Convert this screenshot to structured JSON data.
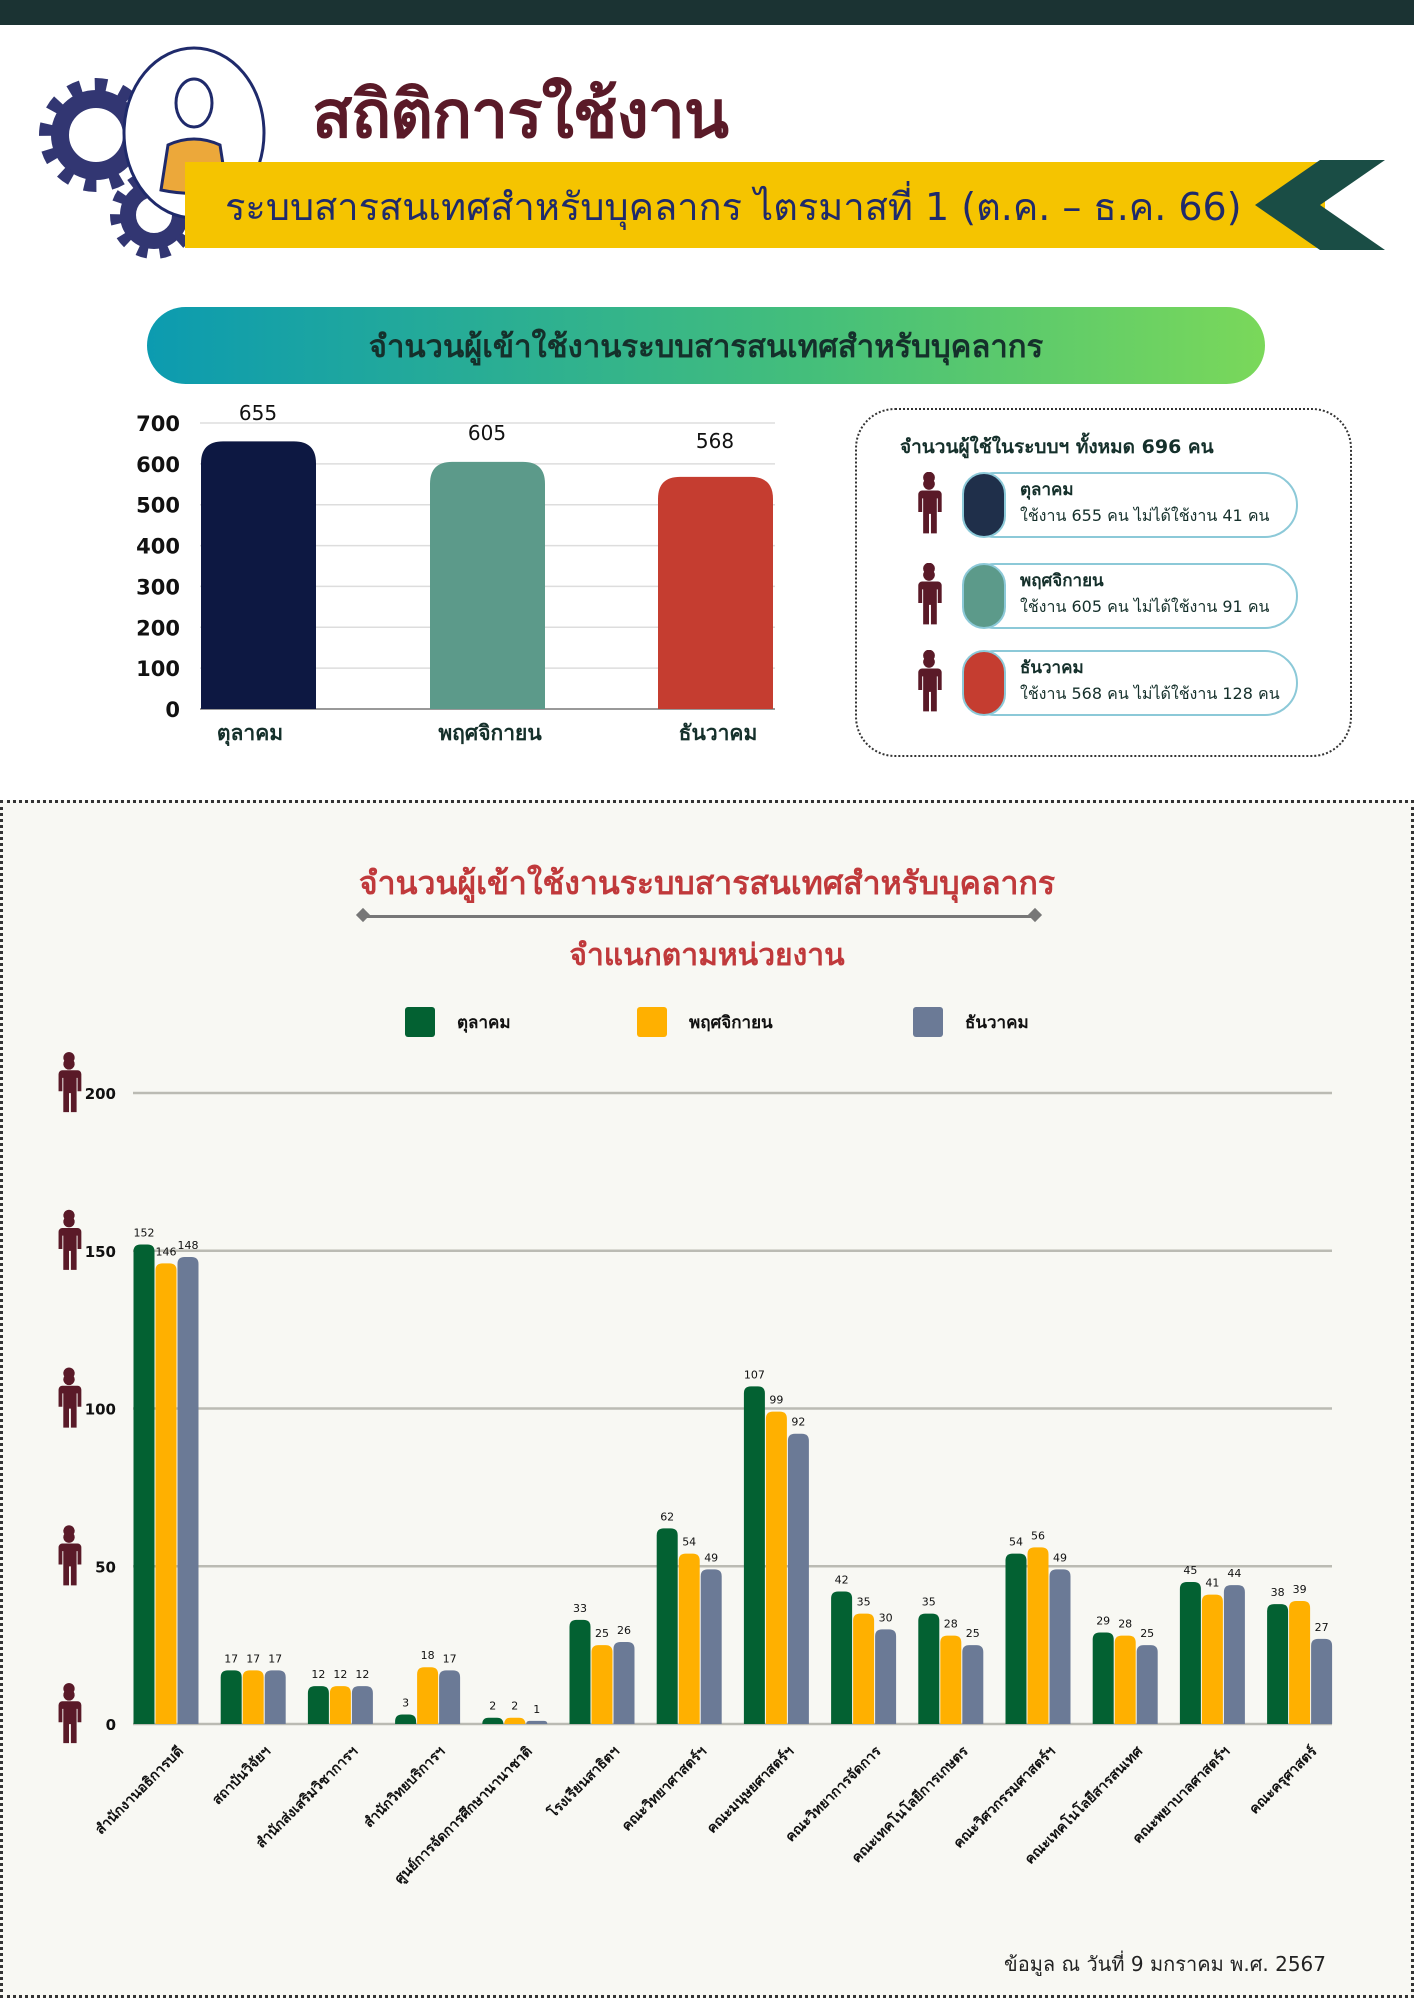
{
  "header": {
    "title": "สถิติการใช้งาน",
    "subtitle": "ระบบสารสนเทศสำหรับบุคลากร ไตรมาสที่ 1 (ต.ค. – ธ.ค. 66)"
  },
  "section1": {
    "heading": "จำนวนผู้เข้าใช้งานระบบสารสนเทศสำหรับบุคลากร"
  },
  "summary": {
    "title": "จำนวนผู้ใช้ในระบบฯ ทั้งหมด 696 คน",
    "items": [
      {
        "month": "ตุลาคม",
        "text": "ใช้งาน 655 คน ไม่ได้ใช้งาน 41 คน",
        "color": "#1f2f4a"
      },
      {
        "month": "พฤศจิกายน",
        "text": "ใช้งาน 605 คน ไม่ได้ใช้งาน 91 คน",
        "color": "#5c9a8a"
      },
      {
        "month": "ธันวาคม",
        "text": "ใช้งาน 568 คน ไม่ได้ใช้งาน 128 คน",
        "color": "#c53d30"
      }
    ]
  },
  "section2": {
    "title": "จำนวนผู้เข้าใช้งานระบบสารสนเทศสำหรับบุคลากร",
    "subtitle": "จำแนกตามหน่วยงาน",
    "footer": "ข้อมูล ณ วันที่ 9 มกราคม พ.ศ. 2567"
  },
  "chart_data": [
    {
      "type": "bar",
      "title": "",
      "categories": [
        "ตุลาคม",
        "พฤศจิกายน",
        "ธันวาคม"
      ],
      "values": [
        655,
        605,
        568
      ],
      "colors": [
        "#0d1842",
        "#5c9a8a",
        "#c53d30"
      ],
      "ylim": [
        0,
        700
      ],
      "yticks": [
        0,
        100,
        200,
        300,
        400,
        500,
        600,
        700
      ],
      "grid": true
    },
    {
      "type": "bar",
      "title": "จำนวนผู้เข้าใช้งานระบบสารสนเทศสำหรับบุคลากร จำแนกตามหน่วยงาน",
      "legend_position": "top",
      "categories": [
        "สำนักงานอธิการบดี",
        "สถาบันวิจัยฯ",
        "สำนักส่งเสริมวิชาการฯ",
        "สำนักวิทยบริการฯ",
        "ศูนย์การจัดการศึกษานานาชาติ",
        "โรงเรียนสาธิตฯ",
        "คณะวิทยาศาสตร์ฯ",
        "คณะมนุษยศาสตร์ฯ",
        "คณะวิทยาการจัดการ",
        "คณะเทคโนโลยีการเกษตร",
        "คณะวิศวกรรมศาสตร์ฯ",
        "คณะเทคโนโลยีสารสนเทศ",
        "คณะพยาบาลศาสตร์ฯ",
        "คณะครุศาสตร์"
      ],
      "series": [
        {
          "name": "ตุลาคม",
          "color": "#036132",
          "values": [
            152,
            17,
            12,
            3,
            2,
            33,
            62,
            107,
            42,
            35,
            54,
            29,
            45,
            38
          ]
        },
        {
          "name": "พฤศจิกายน",
          "color": "#ffb000",
          "values": [
            146,
            17,
            12,
            18,
            2,
            25,
            54,
            99,
            35,
            28,
            56,
            28,
            41,
            39
          ]
        },
        {
          "name": "ธันวาคม",
          "color": "#6b7a96",
          "values": [
            148,
            17,
            12,
            17,
            1,
            26,
            49,
            92,
            30,
            25,
            49,
            25,
            44,
            27
          ]
        }
      ],
      "ylim": [
        0,
        200
      ],
      "yticks": [
        0,
        50,
        100,
        150,
        200
      ],
      "grid": true
    }
  ]
}
